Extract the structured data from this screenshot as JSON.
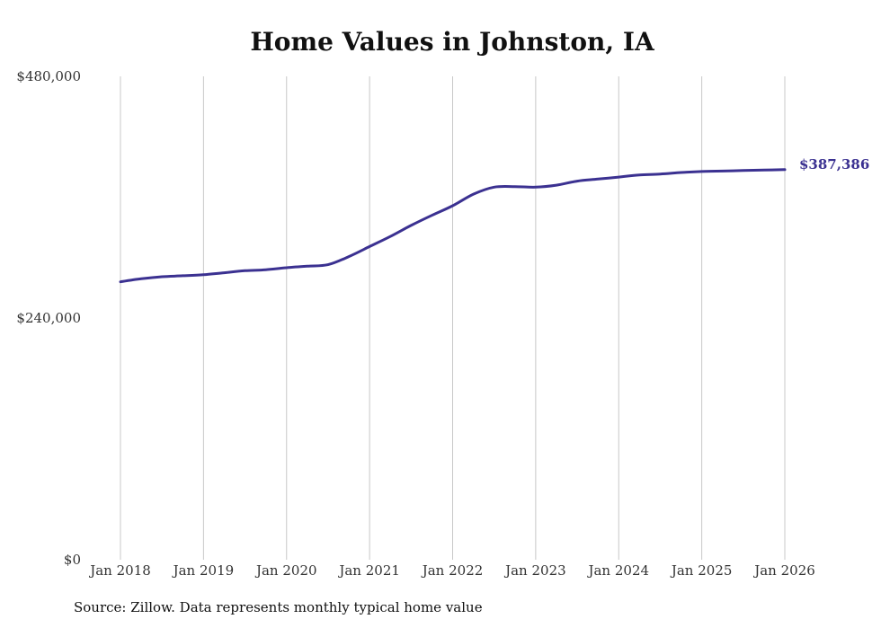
{
  "chart_data": {
    "type": "line",
    "title": "Home Values in Johnston, IA",
    "source": "Source: Zillow. Data represents monthly typical home value",
    "xlabel": "",
    "ylabel": "",
    "ylim": [
      0,
      480000
    ],
    "grid": "vertical",
    "line_color": "#3b3191",
    "y_ticks": [
      {
        "value": 0,
        "label": "$0"
      },
      {
        "value": 240000,
        "label": "$240,000"
      },
      {
        "value": 480000,
        "label": "$480,000"
      }
    ],
    "x_ticks": [
      {
        "value": 2018,
        "label": "Jan 2018"
      },
      {
        "value": 2019,
        "label": "Jan 2019"
      },
      {
        "value": 2020,
        "label": "Jan 2020"
      },
      {
        "value": 2021,
        "label": "Jan 2021"
      },
      {
        "value": 2022,
        "label": "Jan 2022"
      },
      {
        "value": 2023,
        "label": "Jan 2023"
      },
      {
        "value": 2024,
        "label": "Jan 2024"
      },
      {
        "value": 2025,
        "label": "Jan 2025"
      },
      {
        "value": 2026,
        "label": "Jan 2026"
      }
    ],
    "series": [
      {
        "name": "Typical home value",
        "x": [
          2018.0,
          2018.25,
          2018.5,
          2018.75,
          2019.0,
          2019.25,
          2019.5,
          2019.75,
          2020.0,
          2020.25,
          2020.5,
          2020.75,
          2021.0,
          2021.25,
          2021.5,
          2021.75,
          2022.0,
          2022.25,
          2022.5,
          2022.75,
          2023.0,
          2023.25,
          2023.5,
          2023.75,
          2024.0,
          2024.25,
          2024.5,
          2024.75,
          2025.0,
          2025.25,
          2025.5,
          2025.75,
          2026.0
        ],
        "values": [
          276000,
          279000,
          281000,
          282000,
          283000,
          285000,
          287000,
          288000,
          290000,
          291500,
          293000,
          301000,
          311000,
          321000,
          332000,
          342000,
          351500,
          363000,
          370000,
          370500,
          370000,
          372000,
          376000,
          378000,
          380000,
          382000,
          383000,
          384500,
          385500,
          386000,
          386500,
          387000,
          387386
        ]
      }
    ],
    "end_label": "$387,386"
  }
}
